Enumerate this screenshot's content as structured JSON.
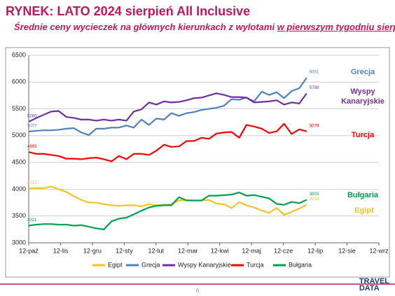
{
  "title": "RYNEK: LATO 2024 sierpień All Inclusive",
  "subtitle": [
    "Średnie ceny wycieczek na głównych kierunkach z wylotami ",
    "w pierwszym tygodniu sierpnia"
  ],
  "page_number": "6",
  "logo": [
    "TRAVEL",
    "DATA"
  ],
  "chart_data": {
    "type": "line",
    "x": [
      0,
      0.24,
      0.47,
      0.71,
      0.94,
      1.18,
      1.42,
      1.65,
      1.89,
      2.12,
      2.36,
      2.6,
      2.83,
      3.07,
      3.3,
      3.54,
      3.78,
      4.01,
      4.25,
      4.48,
      4.72,
      4.96,
      5.19,
      5.43,
      5.66,
      5.9,
      6.14,
      6.37,
      6.61,
      6.84,
      7.08,
      7.32,
      7.55,
      7.79,
      8.02,
      8.26,
      8.5,
      8.73
    ],
    "xlim": [
      0,
      11
    ],
    "xticks": [
      {
        "value": 0,
        "label": "12-paź"
      },
      {
        "value": 1,
        "label": "12-lis"
      },
      {
        "value": 2,
        "label": "12-gru"
      },
      {
        "value": 3,
        "label": "12-sty"
      },
      {
        "value": 4,
        "label": "12-lut"
      },
      {
        "value": 5,
        "label": "12-mar"
      },
      {
        "value": 6,
        "label": "12-kwi"
      },
      {
        "value": 7,
        "label": "12-maj"
      },
      {
        "value": 8,
        "label": "12-cze"
      },
      {
        "value": 9,
        "label": "12-lip"
      },
      {
        "value": 10,
        "label": "12-sie"
      },
      {
        "value": 11,
        "label": "12-wrz"
      }
    ],
    "ylim": [
      3000,
      6500
    ],
    "yticks": [
      3000,
      3500,
      4000,
      4500,
      5000,
      5500,
      6000,
      6500
    ],
    "grid": true,
    "legend": "bottom",
    "series": [
      {
        "name": "Egipt",
        "color": "#f5c324",
        "values": [
          4012,
          4020,
          4020,
          4050,
          4000,
          3950,
          3870,
          3800,
          3750,
          3750,
          3720,
          3700,
          3690,
          3700,
          3700,
          3680,
          3720,
          3700,
          3710,
          3720,
          3790,
          3800,
          3790,
          3790,
          3800,
          3730,
          3720,
          3650,
          3760,
          3700,
          3660,
          3600,
          3560,
          3650,
          3520,
          3580,
          3640,
          3710
        ]
      },
      {
        "name": "Grecja",
        "color": "#4f81bd",
        "values": [
          5077,
          5090,
          5100,
          5100,
          5110,
          5130,
          5140,
          5060,
          5010,
          5130,
          5130,
          5150,
          5150,
          5190,
          5150,
          5300,
          5200,
          5320,
          5300,
          5420,
          5370,
          5420,
          5440,
          5480,
          5500,
          5520,
          5560,
          5680,
          5670,
          5710,
          5640,
          5820,
          5760,
          5810,
          5700,
          5832,
          5885,
          6081
        ]
      },
      {
        "name": "Wyspy Kanaryjskie",
        "color": "#7030a0",
        "values": [
          5260,
          5330,
          5390,
          5450,
          5460,
          5350,
          5330,
          5300,
          5300,
          5280,
          5300,
          5280,
          5300,
          5280,
          5450,
          5490,
          5620,
          5580,
          5640,
          5620,
          5630,
          5660,
          5700,
          5710,
          5750,
          5790,
          5760,
          5720,
          5720,
          5710,
          5620,
          5630,
          5640,
          5660,
          5580,
          5620,
          5600,
          5788
        ]
      },
      {
        "name": "Turcja",
        "color": "#ff0000",
        "values": [
          4693,
          4660,
          4660,
          4640,
          4620,
          4570,
          4570,
          4560,
          4580,
          4590,
          4560,
          4520,
          4620,
          4560,
          4660,
          4660,
          4640,
          4720,
          4830,
          4790,
          4800,
          4900,
          4900,
          4960,
          4940,
          5040,
          5060,
          5070,
          4960,
          5200,
          5170,
          5130,
          5050,
          5080,
          5222,
          5031,
          5118,
          5079
        ]
      },
      {
        "name": "Bułgaria",
        "color": "#00a050",
        "values": [
          3321,
          3340,
          3350,
          3350,
          3340,
          3340,
          3320,
          3330,
          3300,
          3270,
          3250,
          3400,
          3450,
          3470,
          3530,
          3600,
          3660,
          3690,
          3700,
          3700,
          3850,
          3790,
          3790,
          3790,
          3880,
          3880,
          3890,
          3900,
          3940,
          3880,
          3890,
          3860,
          3830,
          3726,
          3710,
          3763,
          3740,
          3803
        ]
      }
    ]
  }
}
